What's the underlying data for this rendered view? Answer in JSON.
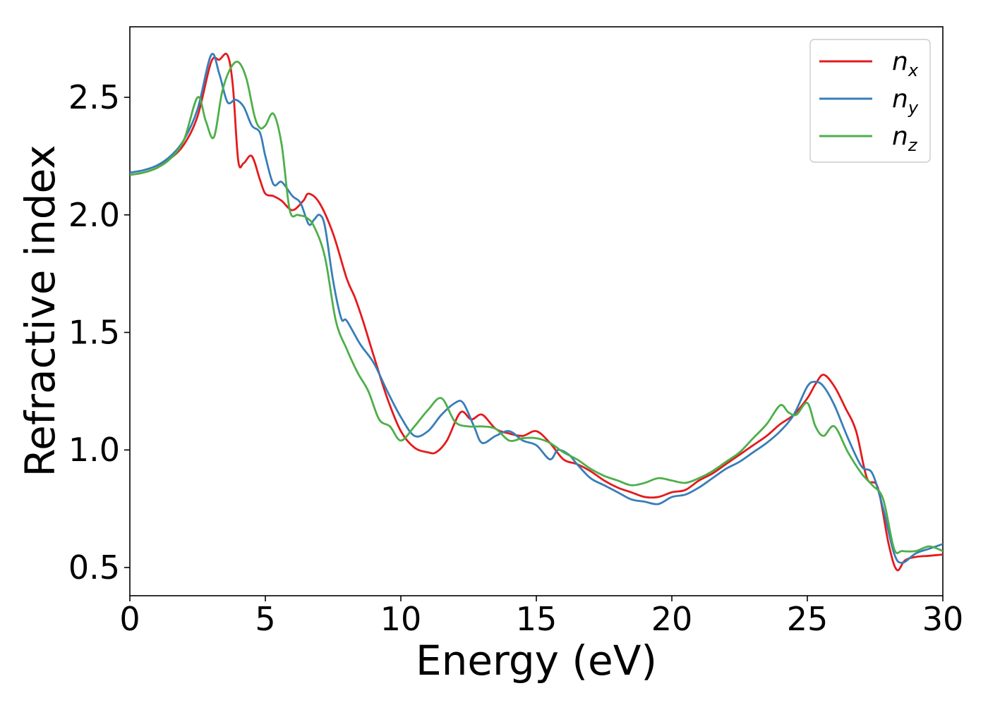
{
  "chart_data": {
    "type": "line",
    "title": "",
    "xlabel": "Energy (eV)",
    "ylabel": "Refractive index",
    "xlim": [
      0,
      30
    ],
    "ylim": [
      0.38,
      2.8
    ],
    "xticks": [
      0,
      5,
      10,
      15,
      20,
      25,
      30
    ],
    "xtick_labels": [
      "0",
      "5",
      "10",
      "15",
      "20",
      "25",
      "30"
    ],
    "yticks": [
      0.5,
      1.0,
      1.5,
      2.0,
      2.5
    ],
    "ytick_labels": [
      "0.5",
      "1.0",
      "1.5",
      "2.0",
      "2.5"
    ],
    "grid": false,
    "legend_position": "top-right",
    "series": [
      {
        "name": "nx",
        "base": "n",
        "subscript": "x",
        "color": "#e41a1c",
        "x": [
          0,
          0.5,
          1,
          1.5,
          2,
          2.5,
          3,
          3.3,
          3.6,
          3.8,
          4,
          4.2,
          4.5,
          4.8,
          5,
          5.3,
          5.6,
          6,
          6.4,
          6.6,
          7,
          7.5,
          8,
          8.3,
          8.6,
          9,
          9.5,
          10,
          10.5,
          11,
          11.3,
          11.7,
          12.2,
          12.6,
          13,
          13.5,
          14,
          14.5,
          15,
          15.5,
          16,
          16.5,
          17,
          17.5,
          18,
          18.5,
          19,
          19.5,
          20,
          20.5,
          21,
          21.5,
          22,
          22.5,
          23,
          23.5,
          24,
          24.5,
          25,
          25.3,
          25.6,
          26,
          26.4,
          26.8,
          27.2,
          27.6,
          28,
          28.3,
          28.6,
          29,
          29.5,
          30
        ],
        "y": [
          2.17,
          2.18,
          2.2,
          2.24,
          2.3,
          2.42,
          2.65,
          2.66,
          2.68,
          2.55,
          2.23,
          2.22,
          2.25,
          2.15,
          2.09,
          2.08,
          2.06,
          2.02,
          2.06,
          2.09,
          2.05,
          1.92,
          1.73,
          1.65,
          1.55,
          1.4,
          1.22,
          1.08,
          1.01,
          0.99,
          0.99,
          1.04,
          1.16,
          1.13,
          1.15,
          1.09,
          1.07,
          1.06,
          1.08,
          1.03,
          0.96,
          0.94,
          0.91,
          0.87,
          0.84,
          0.82,
          0.8,
          0.8,
          0.82,
          0.83,
          0.87,
          0.9,
          0.94,
          0.98,
          1.02,
          1.06,
          1.11,
          1.15,
          1.22,
          1.28,
          1.32,
          1.27,
          1.18,
          1.08,
          0.88,
          0.84,
          0.6,
          0.49,
          0.53,
          0.545,
          0.55,
          0.555
        ]
      },
      {
        "name": "ny",
        "base": "n",
        "subscript": "y",
        "color": "#377eb8",
        "x": [
          0,
          0.5,
          1,
          1.5,
          2,
          2.5,
          3,
          3.3,
          3.6,
          3.9,
          4.2,
          4.5,
          4.8,
          5,
          5.3,
          5.6,
          6,
          6.3,
          6.6,
          6.8,
          7,
          7.2,
          7.5,
          7.8,
          8,
          8.5,
          9,
          9.5,
          10,
          10.5,
          11,
          11.5,
          12,
          12.3,
          12.7,
          13,
          13.5,
          14,
          14.5,
          15,
          15.5,
          15.8,
          16.2,
          16.5,
          17,
          17.5,
          18,
          18.5,
          19,
          19.5,
          20,
          20.5,
          21,
          21.5,
          22,
          22.5,
          23,
          23.5,
          24,
          24.5,
          25,
          25.3,
          25.6,
          26,
          26.5,
          27,
          27.4,
          27.8,
          28.2,
          28.5,
          29,
          29.5,
          30
        ],
        "y": [
          2.18,
          2.19,
          2.21,
          2.25,
          2.32,
          2.45,
          2.68,
          2.6,
          2.48,
          2.49,
          2.46,
          2.38,
          2.35,
          2.25,
          2.13,
          2.14,
          2.08,
          2.05,
          1.96,
          1.98,
          2.0,
          1.95,
          1.72,
          1.56,
          1.55,
          1.45,
          1.37,
          1.25,
          1.14,
          1.06,
          1.08,
          1.15,
          1.2,
          1.2,
          1.1,
          1.03,
          1.06,
          1.08,
          1.04,
          1.02,
          0.96,
          1.0,
          0.98,
          0.94,
          0.88,
          0.85,
          0.82,
          0.79,
          0.78,
          0.77,
          0.8,
          0.81,
          0.84,
          0.88,
          0.92,
          0.95,
          0.99,
          1.03,
          1.08,
          1.15,
          1.27,
          1.29,
          1.27,
          1.19,
          1.05,
          0.93,
          0.9,
          0.75,
          0.56,
          0.52,
          0.56,
          0.58,
          0.6
        ]
      },
      {
        "name": "nz",
        "base": "n",
        "subscript": "z",
        "color": "#4daf4a",
        "x": [
          0,
          0.5,
          1,
          1.5,
          2,
          2.5,
          2.8,
          3.1,
          3.4,
          3.7,
          4,
          4.3,
          4.6,
          4.8,
          5,
          5.3,
          5.6,
          5.9,
          6.2,
          6.5,
          6.8,
          7.2,
          7.6,
          8,
          8.4,
          8.8,
          9.2,
          9.6,
          10,
          10.5,
          11,
          11.5,
          12,
          12.5,
          13,
          13.5,
          14,
          14.5,
          15,
          15.5,
          16,
          16.5,
          17,
          17.5,
          18,
          18.5,
          19,
          19.5,
          20,
          20.5,
          21,
          21.5,
          22,
          22.5,
          23,
          23.5,
          24,
          24.3,
          24.6,
          25,
          25.3,
          25.6,
          26,
          26.5,
          27,
          27.4,
          27.8,
          28.2,
          28.5,
          29,
          29.5,
          30
        ],
        "y": [
          2.17,
          2.18,
          2.2,
          2.24,
          2.32,
          2.5,
          2.4,
          2.33,
          2.52,
          2.62,
          2.65,
          2.58,
          2.42,
          2.37,
          2.38,
          2.43,
          2.3,
          2.02,
          2.0,
          1.99,
          1.95,
          1.82,
          1.55,
          1.43,
          1.33,
          1.25,
          1.13,
          1.1,
          1.04,
          1.1,
          1.17,
          1.22,
          1.12,
          1.1,
          1.1,
          1.09,
          1.04,
          1.05,
          1.05,
          1.03,
          0.99,
          0.96,
          0.92,
          0.89,
          0.87,
          0.85,
          0.86,
          0.88,
          0.87,
          0.86,
          0.88,
          0.91,
          0.95,
          0.99,
          1.05,
          1.11,
          1.19,
          1.16,
          1.15,
          1.2,
          1.1,
          1.06,
          1.1,
          0.99,
          0.9,
          0.85,
          0.79,
          0.58,
          0.57,
          0.57,
          0.59,
          0.57
        ]
      }
    ]
  }
}
